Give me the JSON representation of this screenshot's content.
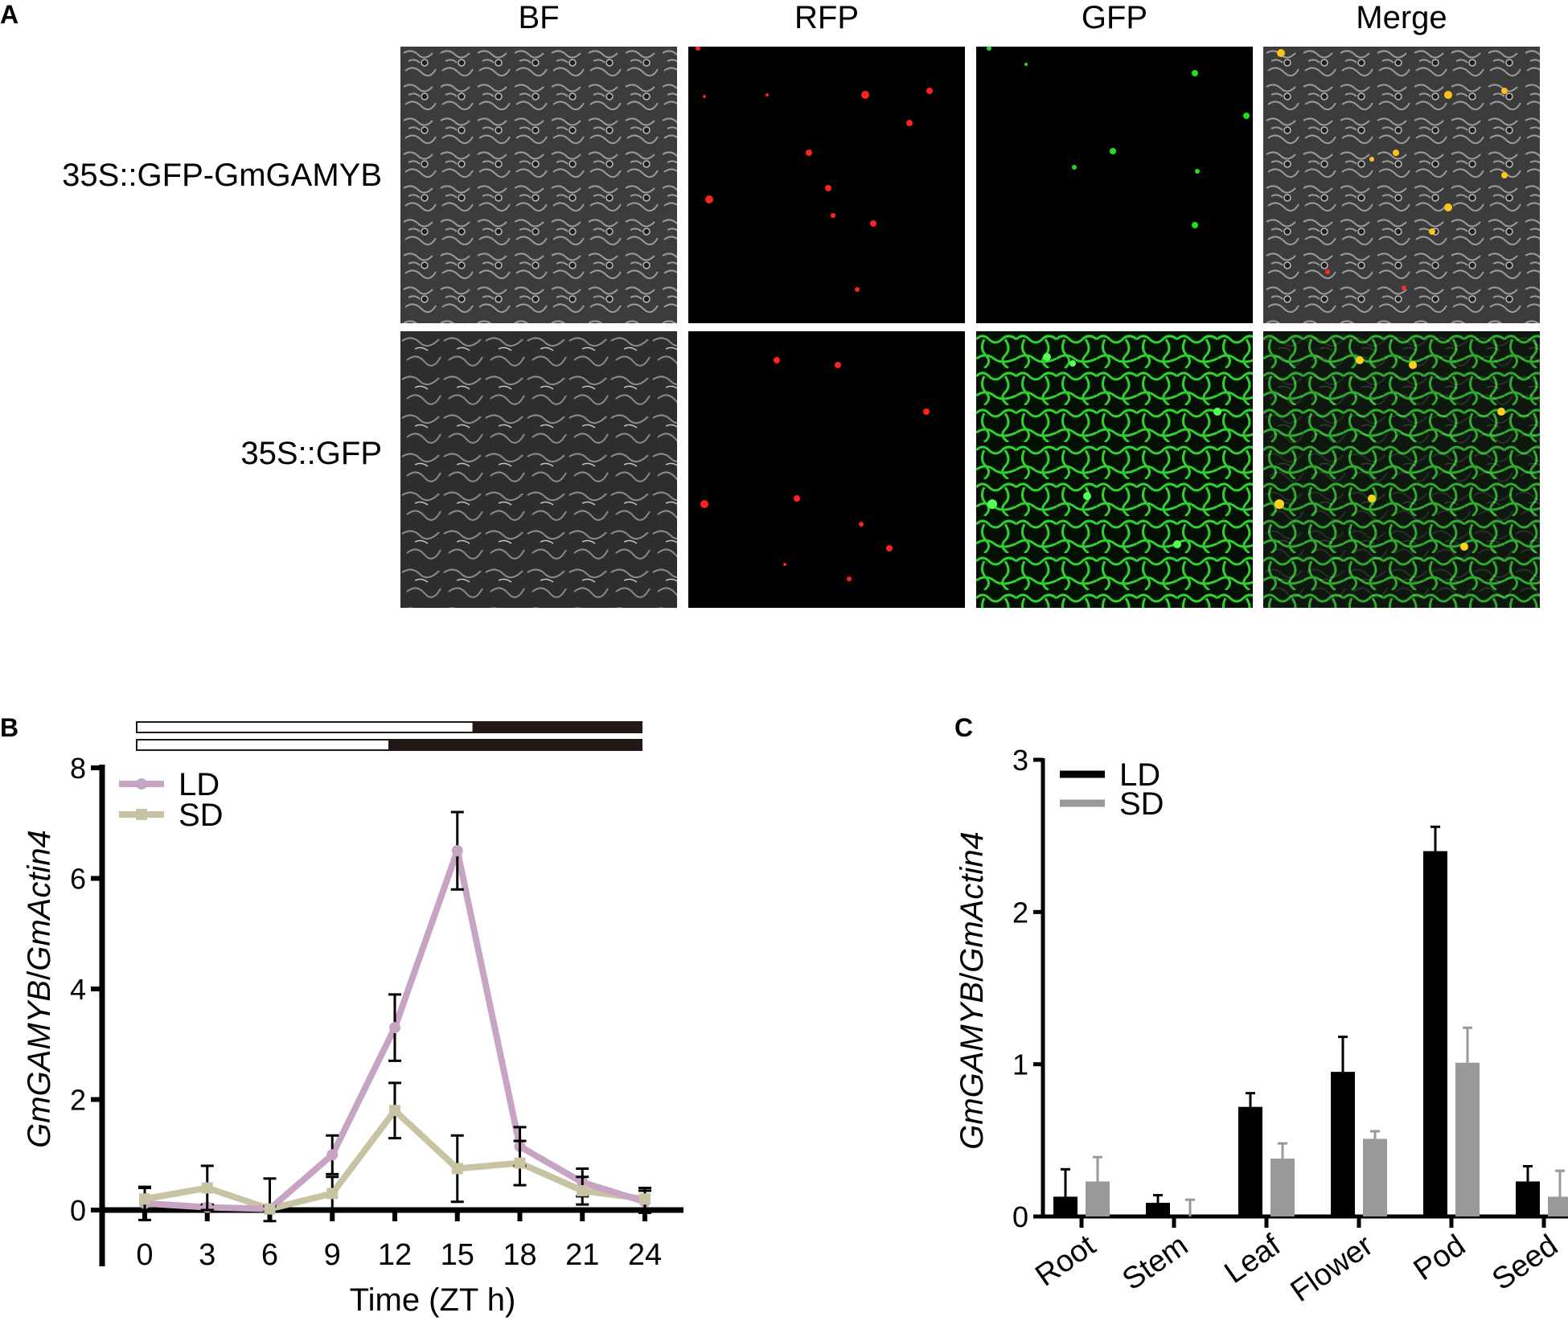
{
  "figure": {
    "panel_a_letter": "A",
    "panel_b_letter": "B",
    "panel_c_letter": "C"
  },
  "panel_a": {
    "columns": [
      "BF",
      "RFP",
      "GFP",
      "Merge"
    ],
    "rows": [
      "35S::GFP-GmGAMYB",
      "35S::GFP"
    ]
  },
  "chart_data": [
    {
      "type": "line",
      "panel": "B",
      "ylabel_italic_1": "GmGAMYB",
      "ylabel_sep": "/",
      "ylabel_italic_2": "GmActin4",
      "xlabel": "Time (ZT h)",
      "x": [
        0,
        3,
        6,
        9,
        12,
        15,
        18,
        21,
        24
      ],
      "x_tick_labels": [
        "0",
        "3",
        "6",
        "9",
        "12",
        "15",
        "18",
        "21",
        "24"
      ],
      "ylim": [
        0,
        8
      ],
      "y_ticks": [
        0,
        2,
        4,
        6,
        8
      ],
      "y_tick_labels": [
        "0",
        "2",
        "4",
        "6",
        "8"
      ],
      "legend_position": "top-left",
      "series": [
        {
          "name": "LD",
          "color": "#c8a4c4",
          "marker": "circle",
          "values": [
            0.12,
            0.05,
            0.02,
            1.0,
            3.3,
            6.5,
            1.15,
            0.5,
            0.15
          ],
          "errors": [
            0.3,
            0.05,
            0.05,
            0.35,
            0.6,
            0.7,
            0.35,
            0.25,
            0.2
          ]
        },
        {
          "name": "SD",
          "color": "#c7c3a3",
          "marker": "square",
          "values": [
            0.2,
            0.4,
            0.02,
            0.3,
            1.8,
            0.75,
            0.85,
            0.35,
            0.2
          ],
          "errors": [
            0.2,
            0.4,
            0.55,
            0.3,
            0.5,
            0.6,
            0.4,
            0.25,
            0.2
          ]
        }
      ],
      "photoperiod_bars": [
        {
          "light_hours": 16,
          "total_hours": 24,
          "light_color": "#ffffff",
          "dark_color": "#231815"
        },
        {
          "light_hours": 12,
          "total_hours": 24,
          "light_color": "#ffffff",
          "dark_color": "#231815"
        }
      ]
    },
    {
      "type": "bar",
      "panel": "C",
      "ylabel_italic_1": "GmGAMYB",
      "ylabel_sep": "/",
      "ylabel_italic_2": "GmActin4",
      "categories": [
        "Root",
        "Stem",
        "Leaf",
        "Flower",
        "Pod",
        "Seed"
      ],
      "ylim": [
        0,
        3
      ],
      "y_ticks": [
        0,
        1,
        2,
        3
      ],
      "y_tick_labels": [
        "0",
        "1",
        "2",
        "3"
      ],
      "legend_position": "top-left",
      "series": [
        {
          "name": "LD",
          "color": "#000000",
          "values": [
            0.13,
            0.09,
            0.72,
            0.95,
            2.4,
            0.23
          ],
          "errors": [
            0.18,
            0.05,
            0.09,
            0.23,
            0.16,
            0.1
          ]
        },
        {
          "name": "SD",
          "color": "#999999",
          "values": [
            0.23,
            0.0,
            0.38,
            0.51,
            1.01,
            0.13
          ],
          "errors": [
            0.16,
            0.11,
            0.1,
            0.05,
            0.23,
            0.17
          ]
        }
      ]
    }
  ]
}
